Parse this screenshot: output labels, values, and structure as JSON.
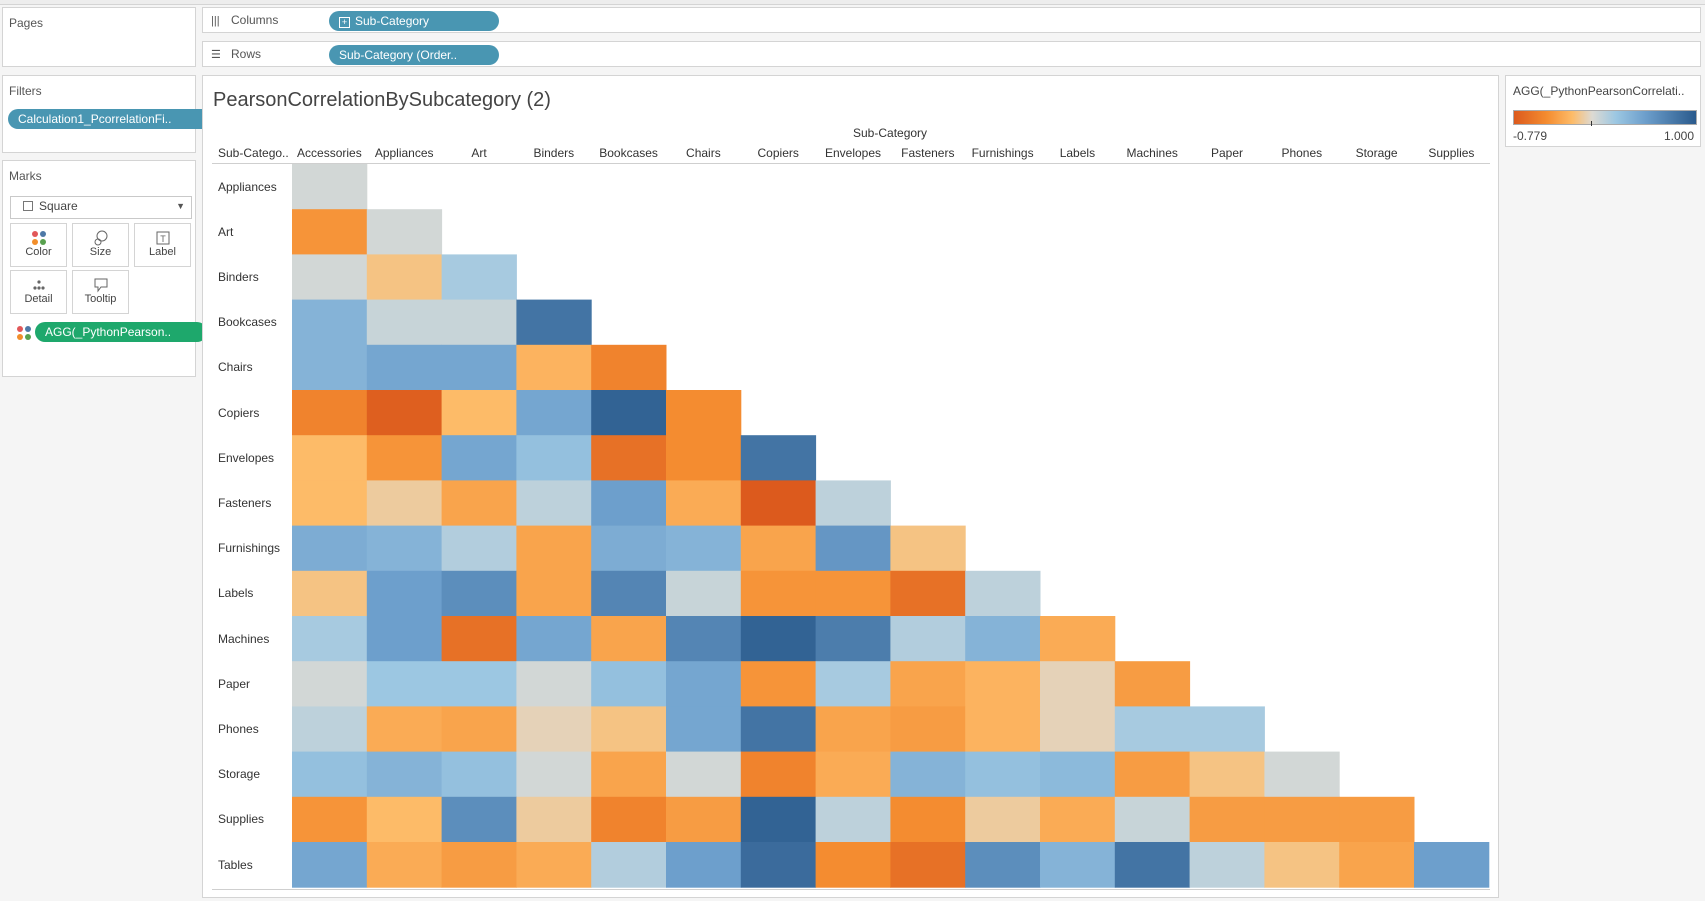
{
  "pages": {
    "title": "Pages"
  },
  "filters": {
    "title": "Filters",
    "pill": "Calculation1_PcorrelationFi.."
  },
  "marks": {
    "title": "Marks",
    "type": "Square",
    "buttons": [
      "Color",
      "Size",
      "Label",
      "Detail",
      "Tooltip"
    ],
    "pill": "AGG(_PythonPearson.."
  },
  "shelves": {
    "columns_label": "Columns",
    "columns_pill": "Sub-Category",
    "rows_label": "Rows",
    "rows_pill": "Sub-Category (Order.."
  },
  "view": {
    "title": "PearsonCorrelationBySubcategory (2)",
    "column_header": "Sub-Category",
    "row_header": "Sub-Catego.."
  },
  "legend": {
    "title": "AGG(_PythonPearsonCorrelati..",
    "min": "-0.779",
    "max": "1.000",
    "colors": {
      "low": "#dc5a1d",
      "mid": "#dddad3",
      "high": "#2a5a8c"
    }
  },
  "chart_data": {
    "type": "heatmap",
    "title": "PearsonCorrelationBySubcategory (2)",
    "xlabel": "Sub-Category",
    "x_categories": [
      "Accessories",
      "Appliances",
      "Art",
      "Binders",
      "Bookcases",
      "Chairs",
      "Copiers",
      "Envelopes",
      "Fasteners",
      "Furnishings",
      "Labels",
      "Machines",
      "Paper",
      "Phones",
      "Storage",
      "Supplies"
    ],
    "y_categories": [
      "Appliances",
      "Art",
      "Binders",
      "Bookcases",
      "Chairs",
      "Copiers",
      "Envelopes",
      "Fasteners",
      "Furnishings",
      "Labels",
      "Machines",
      "Paper",
      "Phones",
      "Storage",
      "Supplies",
      "Tables"
    ],
    "value_range": [
      -0.779,
      1.0
    ],
    "values": [
      [
        0.05
      ],
      [
        -0.45,
        0.05
      ],
      [
        0.05,
        -0.15,
        0.25
      ],
      [
        0.45,
        0.1,
        0.1,
        0.85
      ],
      [
        0.45,
        0.55,
        0.55,
        -0.25,
        -0.55
      ],
      [
        -0.55,
        -0.75,
        -0.2,
        0.55,
        0.95,
        -0.5
      ],
      [
        -0.2,
        -0.45,
        0.55,
        0.35,
        -0.65,
        -0.5,
        0.85
      ],
      [
        -0.2,
        -0.1,
        -0.35,
        0.15,
        0.6,
        -0.3,
        -0.78,
        0.15
      ],
      [
        0.5,
        0.45,
        0.2,
        -0.35,
        0.5,
        0.45,
        -0.35,
        0.65,
        -0.15
      ],
      [
        -0.15,
        0.6,
        0.7,
        -0.35,
        0.75,
        0.1,
        -0.45,
        -0.45,
        -0.65,
        0.15
      ],
      [
        0.25,
        0.6,
        -0.65,
        0.55,
        -0.35,
        0.75,
        0.95,
        0.8,
        0.2,
        0.45,
        -0.3
      ],
      [
        0.05,
        0.3,
        0.3,
        0.05,
        0.35,
        0.55,
        -0.45,
        0.25,
        -0.35,
        -0.25,
        -0.05,
        -0.4
      ],
      [
        0.15,
        -0.3,
        -0.35,
        -0.05,
        -0.15,
        0.55,
        0.85,
        -0.35,
        -0.4,
        -0.25,
        -0.05,
        0.25,
        0.25
      ],
      [
        0.35,
        0.45,
        0.35,
        0.05,
        -0.35,
        0.05,
        -0.55,
        -0.3,
        0.45,
        0.35,
        0.4,
        -0.4,
        -0.15,
        0.05
      ],
      [
        -0.45,
        -0.2,
        0.7,
        -0.1,
        -0.55,
        -0.4,
        0.95,
        0.15,
        -0.5,
        -0.1,
        -0.3,
        0.1,
        -0.4,
        -0.4,
        -0.4
      ],
      [
        0.55,
        -0.3,
        -0.4,
        -0.3,
        0.2,
        0.6,
        0.9,
        -0.5,
        -0.65,
        0.7,
        0.45,
        0.85,
        0.15,
        -0.15,
        -0.35,
        0.6
      ]
    ]
  }
}
